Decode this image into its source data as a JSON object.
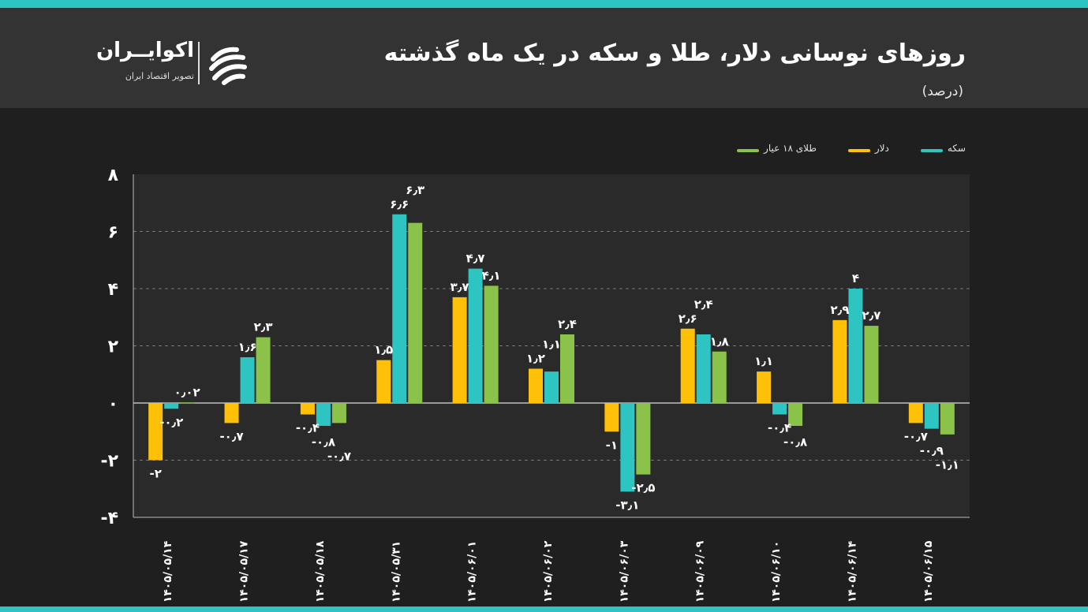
{
  "header": {
    "title": "روزهای نوسانی دلار، طلا و سکه در یک ماه گذشته",
    "subtitle": "(درصد)"
  },
  "logo": {
    "name": "اکوایــران",
    "tagline": "تصویر اقتصاد ایران"
  },
  "colors": {
    "background": "#1f1f1f",
    "plot_background": "#2a2a2a",
    "header_background": "#333333",
    "accent": "#2ec4c1"
  },
  "chart_data": {
    "type": "bar",
    "title": "روزهای نوسانی دلار، طلا و سکه در یک ماه گذشته",
    "ylim": [
      -4,
      8
    ],
    "yticks": [
      -4,
      -2,
      0,
      2,
      4,
      6,
      8
    ],
    "ytick_labels": [
      "-۴",
      "-۲",
      "۰",
      "۲",
      "۴",
      "۶",
      "۸"
    ],
    "grid": "horizontal-dashed",
    "legend_position": "top-right",
    "categories": [
      "۱۴۰۵/۰۵/۱۴",
      "۱۴۰۵/۰۵/۱۷",
      "۱۴۰۵/۰۵/۱۸",
      "۱۴۰۵/۰۵/۳۱",
      "۱۴۰۵/۰۶/۰۱",
      "۱۴۰۵/۰۶/۰۲",
      "۱۴۰۵/۰۶/۰۳",
      "۱۴۰۵/۰۶/۰۹",
      "۱۴۰۵/۰۶/۱۰",
      "۱۴۰۵/۰۶/۱۴",
      "۱۴۰۵/۰۶/۱۵"
    ],
    "series": [
      {
        "name": "دلار",
        "color": "#ffc107",
        "values": [
          -2,
          -0.7,
          -0.4,
          1.5,
          3.7,
          1.2,
          -1,
          2.6,
          1.1,
          2.9,
          -0.7
        ],
        "labels": [
          "-۲",
          "-۰٫۷",
          "-۰٫۴",
          "۱٫۵",
          "۳٫۷",
          "۱٫۲",
          "-۱",
          "۲٫۶",
          "۱٫۱",
          "۲٫۹",
          "-۰٫۷"
        ]
      },
      {
        "name": "سکه",
        "color": "#2ec4c1",
        "values": [
          -0.2,
          1.6,
          -0.8,
          6.6,
          4.7,
          1.1,
          -3.1,
          2.4,
          -0.4,
          4,
          -0.9
        ],
        "labels": [
          "-۰٫۲",
          "۱٫۶",
          "-۰٫۸",
          "۶٫۶",
          "۴٫۷",
          "۱٫۱",
          "-۳٫۱",
          "۲٫۴",
          "-۰٫۴",
          "۴",
          "-۰٫۹"
        ]
      },
      {
        "name": "طلای ۱۸ عیار",
        "color": "#8bc34a",
        "values": [
          0.02,
          2.3,
          -0.7,
          6.3,
          4.1,
          2.4,
          -2.5,
          1.8,
          -0.8,
          2.7,
          -1.1
        ],
        "labels": [
          "۰٫۰۲",
          "۲٫۳",
          "-۰٫۷",
          "۶٫۳",
          "۴٫۱",
          "۲٫۴",
          "-۲٫۵",
          "۱٫۸",
          "-۰٫۸",
          "۲٫۷",
          "-۱٫۱"
        ]
      }
    ],
    "legend_order": [
      1,
      0,
      2
    ]
  }
}
